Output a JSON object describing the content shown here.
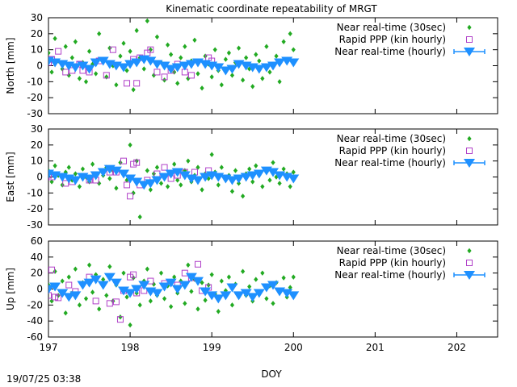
{
  "title": "Kinematic coordinate repeatability of MRGT",
  "timestamp": "19/07/25 03:38",
  "xlabel": "DOY",
  "xticks": [
    "197",
    "198",
    "199",
    "200",
    "201",
    "202"
  ],
  "colors": {
    "realtime_30sec": "#22aa22",
    "rapid_ppp": "#b040c8",
    "realtime_hourly": "#1e90ff"
  },
  "chart_data": [
    {
      "type": "scatter",
      "ylabel": "North [mm]",
      "xlim": [
        197,
        202.5
      ],
      "ylim": [
        -30,
        30
      ],
      "yticks": [
        "30",
        "20",
        "10",
        "0",
        "-10",
        "-20",
        "-30"
      ],
      "grid": false,
      "legend_position": "top-right",
      "legend": [
        "Near real-time (30sec)",
        "Rapid PPP (kin hourly)",
        "Near real-time (hourly)"
      ],
      "series": [
        {
          "name": "Near real-time (30sec)",
          "marker": "diamond",
          "x": [
            197.0,
            197.04,
            197.08,
            197.12,
            197.17,
            197.21,
            197.25,
            197.29,
            197.33,
            197.38,
            197.42,
            197.46,
            197.5,
            197.54,
            197.58,
            197.62,
            197.67,
            197.71,
            197.75,
            197.79,
            197.83,
            197.88,
            197.92,
            197.96,
            198.0,
            198.04,
            198.08,
            198.12,
            198.17,
            198.21,
            198.25,
            198.29,
            198.33,
            198.38,
            198.42,
            198.46,
            198.5,
            198.54,
            198.58,
            198.62,
            198.67,
            198.71,
            198.75,
            198.79,
            198.83,
            198.88,
            198.92,
            198.96,
            199.0,
            199.04,
            199.08,
            199.12,
            199.17,
            199.21,
            199.25,
            199.29,
            199.33,
            199.38,
            199.42,
            199.46,
            199.5,
            199.54,
            199.58,
            199.62,
            199.67,
            199.71,
            199.75,
            199.79,
            199.83,
            199.88,
            199.92,
            199.96,
            200.0
          ],
          "y": [
            8,
            -4,
            17,
            3,
            -2,
            12,
            -6,
            5,
            15,
            -8,
            2,
            -10,
            9,
            1,
            -5,
            20,
            4,
            -7,
            11,
            0,
            -12,
            6,
            14,
            -3,
            9,
            -15,
            22,
            5,
            -2,
            28,
            10,
            -6,
            18,
            2,
            -9,
            13,
            7,
            -4,
            -11,
            5,
            12,
            -8,
            3,
            16,
            -5,
            -14,
            6,
            1,
            -7,
            10,
            -3,
            -12,
            4,
            8,
            -6,
            2,
            11,
            -9,
            5,
            -2,
            -13,
            7,
            3,
            -8,
            12,
            -4,
            1,
            6,
            -10,
            15,
            4,
            20,
            10
          ]
        },
        {
          "name": "Rapid PPP (kin hourly)",
          "marker": "square",
          "x": [
            197.0,
            197.04,
            197.12,
            197.21,
            197.29,
            197.38,
            197.42,
            197.5,
            197.62,
            197.71,
            197.79,
            197.96,
            198.04,
            198.08,
            198.12,
            198.21,
            198.25,
            198.33,
            198.42,
            198.5,
            198.58,
            198.67,
            198.75,
            198.96,
            199.0
          ],
          "y": [
            2,
            4,
            9,
            -4,
            -3,
            1,
            -3,
            -4,
            3,
            -6,
            10,
            -11,
            4,
            -11,
            5,
            8,
            10,
            -4,
            -7,
            -3,
            1,
            -4,
            -6,
            5,
            3
          ]
        },
        {
          "name": "Near real-time (hourly)",
          "marker": "triangle-down",
          "x": [
            197.0,
            197.08,
            197.17,
            197.25,
            197.33,
            197.42,
            197.5,
            197.58,
            197.67,
            197.75,
            197.83,
            197.92,
            198.0,
            198.08,
            198.17,
            198.25,
            198.33,
            198.42,
            198.5,
            198.58,
            198.67,
            198.75,
            198.83,
            198.92,
            199.0,
            199.08,
            199.17,
            199.25,
            199.33,
            199.42,
            199.5,
            199.58,
            199.67,
            199.75,
            199.83,
            199.92,
            200.0
          ],
          "y": [
            3,
            2,
            1,
            0,
            -1,
            0,
            -2,
            2,
            3,
            1,
            0,
            -1,
            1,
            2,
            4,
            3,
            1,
            0,
            -2,
            -1,
            0,
            1,
            2,
            1,
            0,
            -1,
            -3,
            -2,
            1,
            0,
            -1,
            -2,
            -1,
            0,
            2,
            3,
            2
          ]
        }
      ]
    },
    {
      "type": "scatter",
      "ylabel": "East [mm]",
      "xlim": [
        197,
        202.5
      ],
      "ylim": [
        -30,
        30
      ],
      "yticks": [
        "30",
        "20",
        "10",
        "0",
        "-10",
        "-20",
        "-30"
      ],
      "grid": false,
      "legend_position": "top-right",
      "legend": [
        "Near real-time (30sec)",
        "Rapid PPP (kin hourly)",
        "Near real-time (hourly)"
      ],
      "series": [
        {
          "name": "Near real-time (30sec)",
          "marker": "diamond",
          "x": [
            197.0,
            197.04,
            197.08,
            197.12,
            197.17,
            197.21,
            197.25,
            197.29,
            197.33,
            197.38,
            197.42,
            197.46,
            197.5,
            197.54,
            197.58,
            197.62,
            197.67,
            197.71,
            197.75,
            197.79,
            197.83,
            197.88,
            197.92,
            197.96,
            198.0,
            198.04,
            198.08,
            198.12,
            198.17,
            198.21,
            198.25,
            198.29,
            198.33,
            198.38,
            198.42,
            198.46,
            198.5,
            198.54,
            198.58,
            198.62,
            198.67,
            198.71,
            198.75,
            198.79,
            198.83,
            198.88,
            198.92,
            198.96,
            199.0,
            199.04,
            199.08,
            199.12,
            199.17,
            199.21,
            199.25,
            199.29,
            199.33,
            199.38,
            199.42,
            199.46,
            199.5,
            199.54,
            199.58,
            199.62,
            199.67,
            199.71,
            199.75,
            199.79,
            199.83,
            199.88,
            199.92,
            199.96,
            200.0
          ],
          "y": [
            4,
            -3,
            7,
            1,
            -5,
            3,
            6,
            -2,
            2,
            -6,
            5,
            0,
            -3,
            8,
            2,
            -4,
            1,
            6,
            -1,
            4,
            -7,
            9,
            3,
            -2,
            20,
            -10,
            10,
            -25,
            -5,
            4,
            -8,
            2,
            6,
            -4,
            1,
            -6,
            3,
            8,
            -2,
            -5,
            4,
            10,
            -3,
            1,
            6,
            -8,
            2,
            -1,
            14,
            3,
            -5,
            6,
            -2,
            1,
            -9,
            4,
            -4,
            -12,
            2,
            5,
            -3,
            7,
            1,
            -6,
            3,
            -2,
            9,
            0,
            -4,
            5,
            2,
            -6,
            3
          ]
        },
        {
          "name": "Rapid PPP (kin hourly)",
          "marker": "square",
          "x": [
            197.0,
            197.04,
            197.21,
            197.29,
            197.5,
            197.58,
            197.75,
            197.83,
            197.92,
            197.96,
            198.0,
            198.04,
            198.08,
            198.12,
            198.21,
            198.33,
            198.42,
            198.5,
            198.58,
            198.67,
            198.79,
            198.96
          ],
          "y": [
            1,
            0,
            -4,
            -3,
            -2,
            -2,
            3,
            3,
            10,
            -5,
            -12,
            8,
            9,
            -5,
            -2,
            2,
            6,
            -1,
            1,
            3,
            3,
            4
          ]
        },
        {
          "name": "Near real-time (hourly)",
          "marker": "triangle-down",
          "x": [
            197.0,
            197.08,
            197.17,
            197.25,
            197.33,
            197.42,
            197.5,
            197.58,
            197.67,
            197.75,
            197.83,
            197.92,
            198.0,
            198.08,
            198.17,
            198.25,
            198.33,
            198.42,
            198.5,
            198.58,
            198.67,
            198.75,
            198.83,
            198.92,
            199.0,
            199.08,
            199.17,
            199.25,
            199.33,
            199.42,
            199.5,
            199.58,
            199.67,
            199.75,
            199.83,
            199.92,
            200.0
          ],
          "y": [
            2,
            1,
            0,
            -1,
            -2,
            0,
            -1,
            1,
            3,
            5,
            4,
            2,
            -1,
            -3,
            -5,
            -4,
            -2,
            0,
            2,
            3,
            1,
            -1,
            -2,
            0,
            1,
            0,
            -1,
            -2,
            -1,
            0,
            1,
            2,
            4,
            3,
            1,
            0,
            -1
          ]
        }
      ]
    },
    {
      "type": "scatter",
      "ylabel": "Up [mm]",
      "xlim": [
        197,
        202.5
      ],
      "ylim": [
        -60,
        60
      ],
      "yticks": [
        "60",
        "40",
        "20",
        "0",
        "-20",
        "-40",
        "-60"
      ],
      "grid": false,
      "legend_position": "top-right",
      "legend": [
        "Near real-time (30sec)",
        "Rapid PPP (kin hourly)",
        "Near real-time (hourly)"
      ],
      "series": [
        {
          "name": "Near real-time (30sec)",
          "marker": "diamond",
          "x": [
            197.0,
            197.04,
            197.08,
            197.12,
            197.17,
            197.21,
            197.25,
            197.29,
            197.33,
            197.38,
            197.42,
            197.46,
            197.5,
            197.54,
            197.58,
            197.62,
            197.67,
            197.71,
            197.75,
            197.79,
            197.83,
            197.88,
            197.92,
            197.96,
            198.0,
            198.04,
            198.08,
            198.12,
            198.17,
            198.21,
            198.25,
            198.29,
            198.33,
            198.38,
            198.42,
            198.46,
            198.5,
            198.54,
            198.58,
            198.62,
            198.67,
            198.71,
            198.75,
            198.79,
            198.83,
            198.88,
            198.92,
            198.96,
            199.0,
            199.04,
            199.08,
            199.12,
            199.17,
            199.21,
            199.25,
            199.29,
            199.33,
            199.38,
            199.42,
            199.46,
            199.5,
            199.54,
            199.58,
            199.62,
            199.67,
            199.71,
            199.75,
            199.79,
            199.83,
            199.88,
            199.92,
            199.96,
            200.0
          ],
          "y": [
            5,
            -15,
            22,
            -8,
            10,
            -30,
            15,
            -5,
            25,
            -20,
            8,
            -12,
            30,
            -4,
            18,
            -25,
            12,
            -8,
            28,
            -15,
            5,
            -35,
            20,
            -10,
            -45,
            14,
            -5,
            -20,
            10,
            25,
            -15,
            6,
            -8,
            20,
            -12,
            4,
            -22,
            15,
            -5,
            10,
            -18,
            30,
            -3,
            12,
            -25,
            8,
            -14,
            5,
            18,
            -6,
            -28,
            10,
            -2,
            15,
            -20,
            6,
            -10,
            22,
            -8,
            3,
            -15,
            12,
            -5,
            20,
            -12,
            4,
            -18,
            8,
            -3,
            14,
            -10,
            2,
            15
          ]
        },
        {
          "name": "Rapid PPP (kin hourly)",
          "marker": "square",
          "x": [
            197.0,
            197.04,
            197.08,
            197.12,
            197.25,
            197.33,
            197.5,
            197.58,
            197.75,
            197.83,
            197.88,
            197.92,
            198.0,
            198.04,
            198.08,
            198.17,
            198.25,
            198.42,
            198.58,
            198.67,
            198.75,
            198.83,
            198.88,
            198.96
          ],
          "y": [
            -8,
            24,
            -10,
            -11,
            5,
            -3,
            15,
            -15,
            -18,
            -16,
            -38,
            -2,
            15,
            18,
            -5,
            -2,
            10,
            7,
            5,
            20,
            14,
            31,
            -2,
            2
          ]
        },
        {
          "name": "Near real-time (hourly)",
          "marker": "triangle-down",
          "x": [
            197.0,
            197.08,
            197.17,
            197.25,
            197.33,
            197.42,
            197.5,
            197.58,
            197.67,
            197.75,
            197.83,
            197.92,
            198.0,
            198.08,
            198.17,
            198.25,
            198.33,
            198.42,
            198.5,
            198.58,
            198.67,
            198.75,
            198.83,
            198.92,
            199.0,
            199.08,
            199.17,
            199.25,
            199.33,
            199.42,
            199.5,
            199.58,
            199.67,
            199.75,
            199.83,
            199.92,
            200.0
          ],
          "y": [
            0,
            3,
            -5,
            -10,
            -8,
            5,
            8,
            12,
            5,
            15,
            8,
            -2,
            -5,
            0,
            5,
            -3,
            -5,
            3,
            8,
            0,
            5,
            15,
            10,
            -3,
            -8,
            -12,
            -8,
            2,
            -8,
            -5,
            -10,
            -5,
            2,
            5,
            -3,
            -5,
            -8
          ]
        }
      ]
    }
  ]
}
